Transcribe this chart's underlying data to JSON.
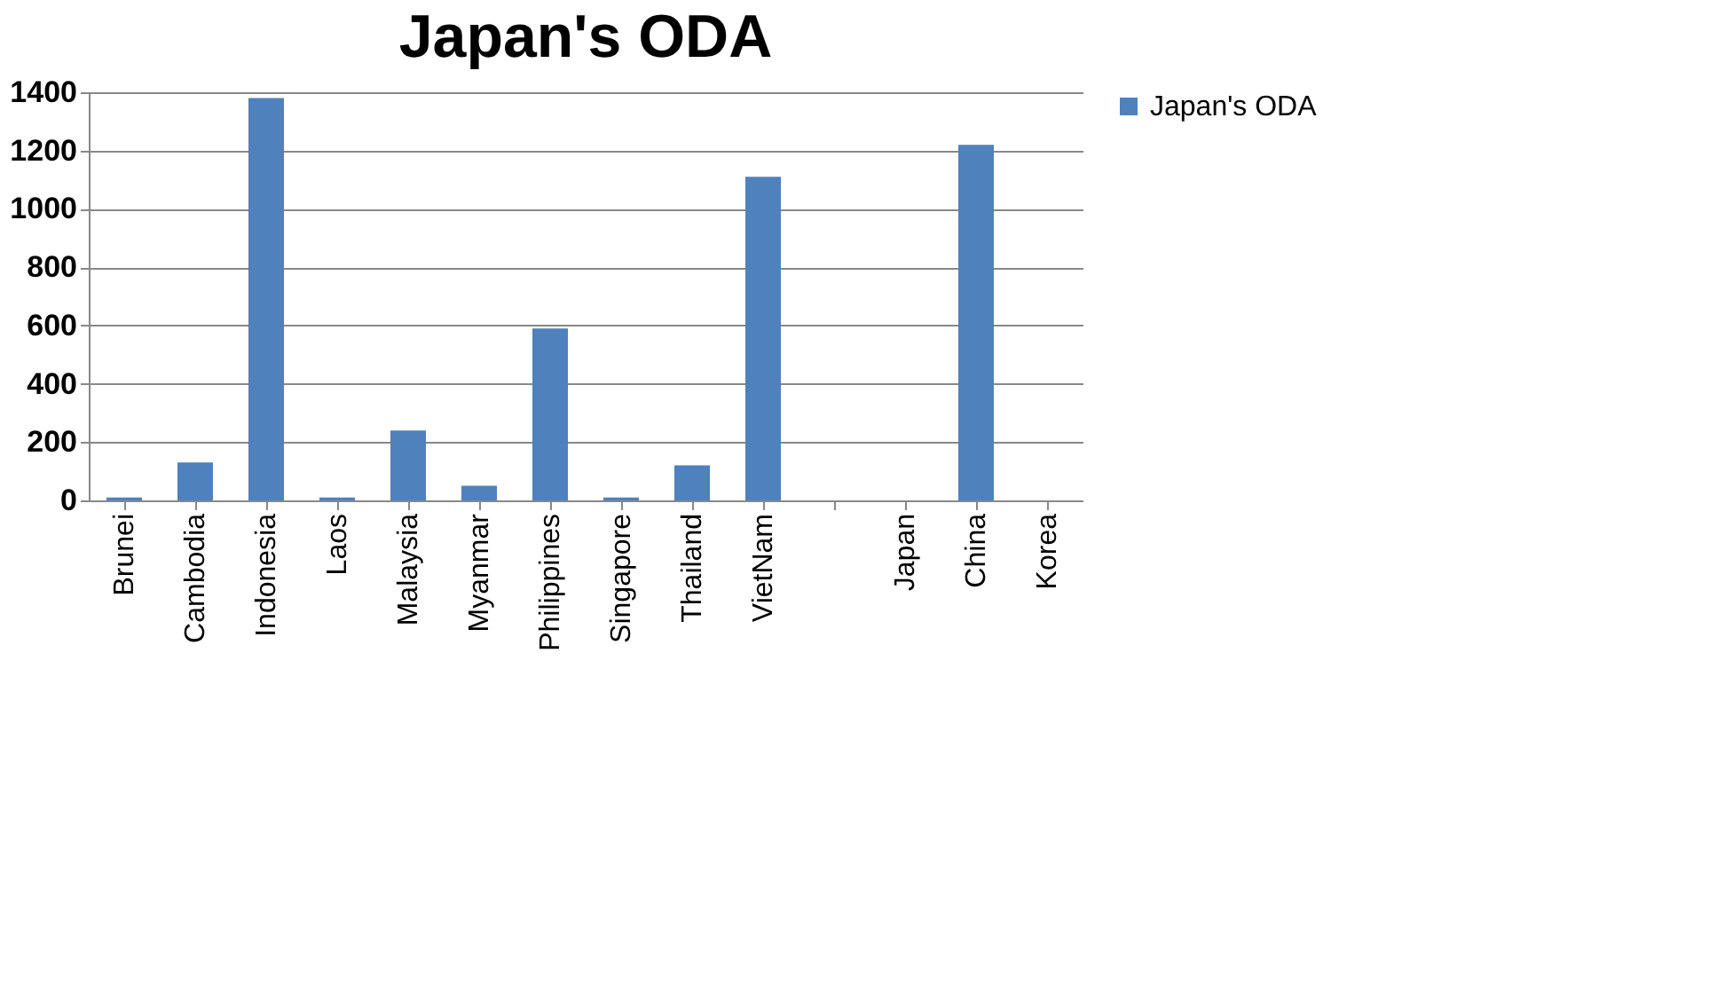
{
  "chart_data": {
    "type": "bar",
    "title": "Japan's ODA",
    "categories": [
      "Brunei",
      "Cambodia",
      "Indonesia",
      "Laos",
      "Malaysia",
      "Myanmar",
      "Philippines",
      "Singapore",
      "Thailand",
      "VietNam",
      null,
      "Japan",
      "China",
      "Korea"
    ],
    "series": [
      {
        "name": "Japan's ODA",
        "color": "#4f81bd",
        "values": [
          10,
          130,
          1380,
          10,
          240,
          50,
          590,
          10,
          120,
          1110,
          null,
          null,
          1220,
          null
        ]
      }
    ],
    "ylim": [
      0,
      1400
    ],
    "yticks": [
      0,
      200,
      400,
      600,
      800,
      1000,
      1200,
      1400
    ],
    "grid": "y",
    "legend": "right"
  }
}
